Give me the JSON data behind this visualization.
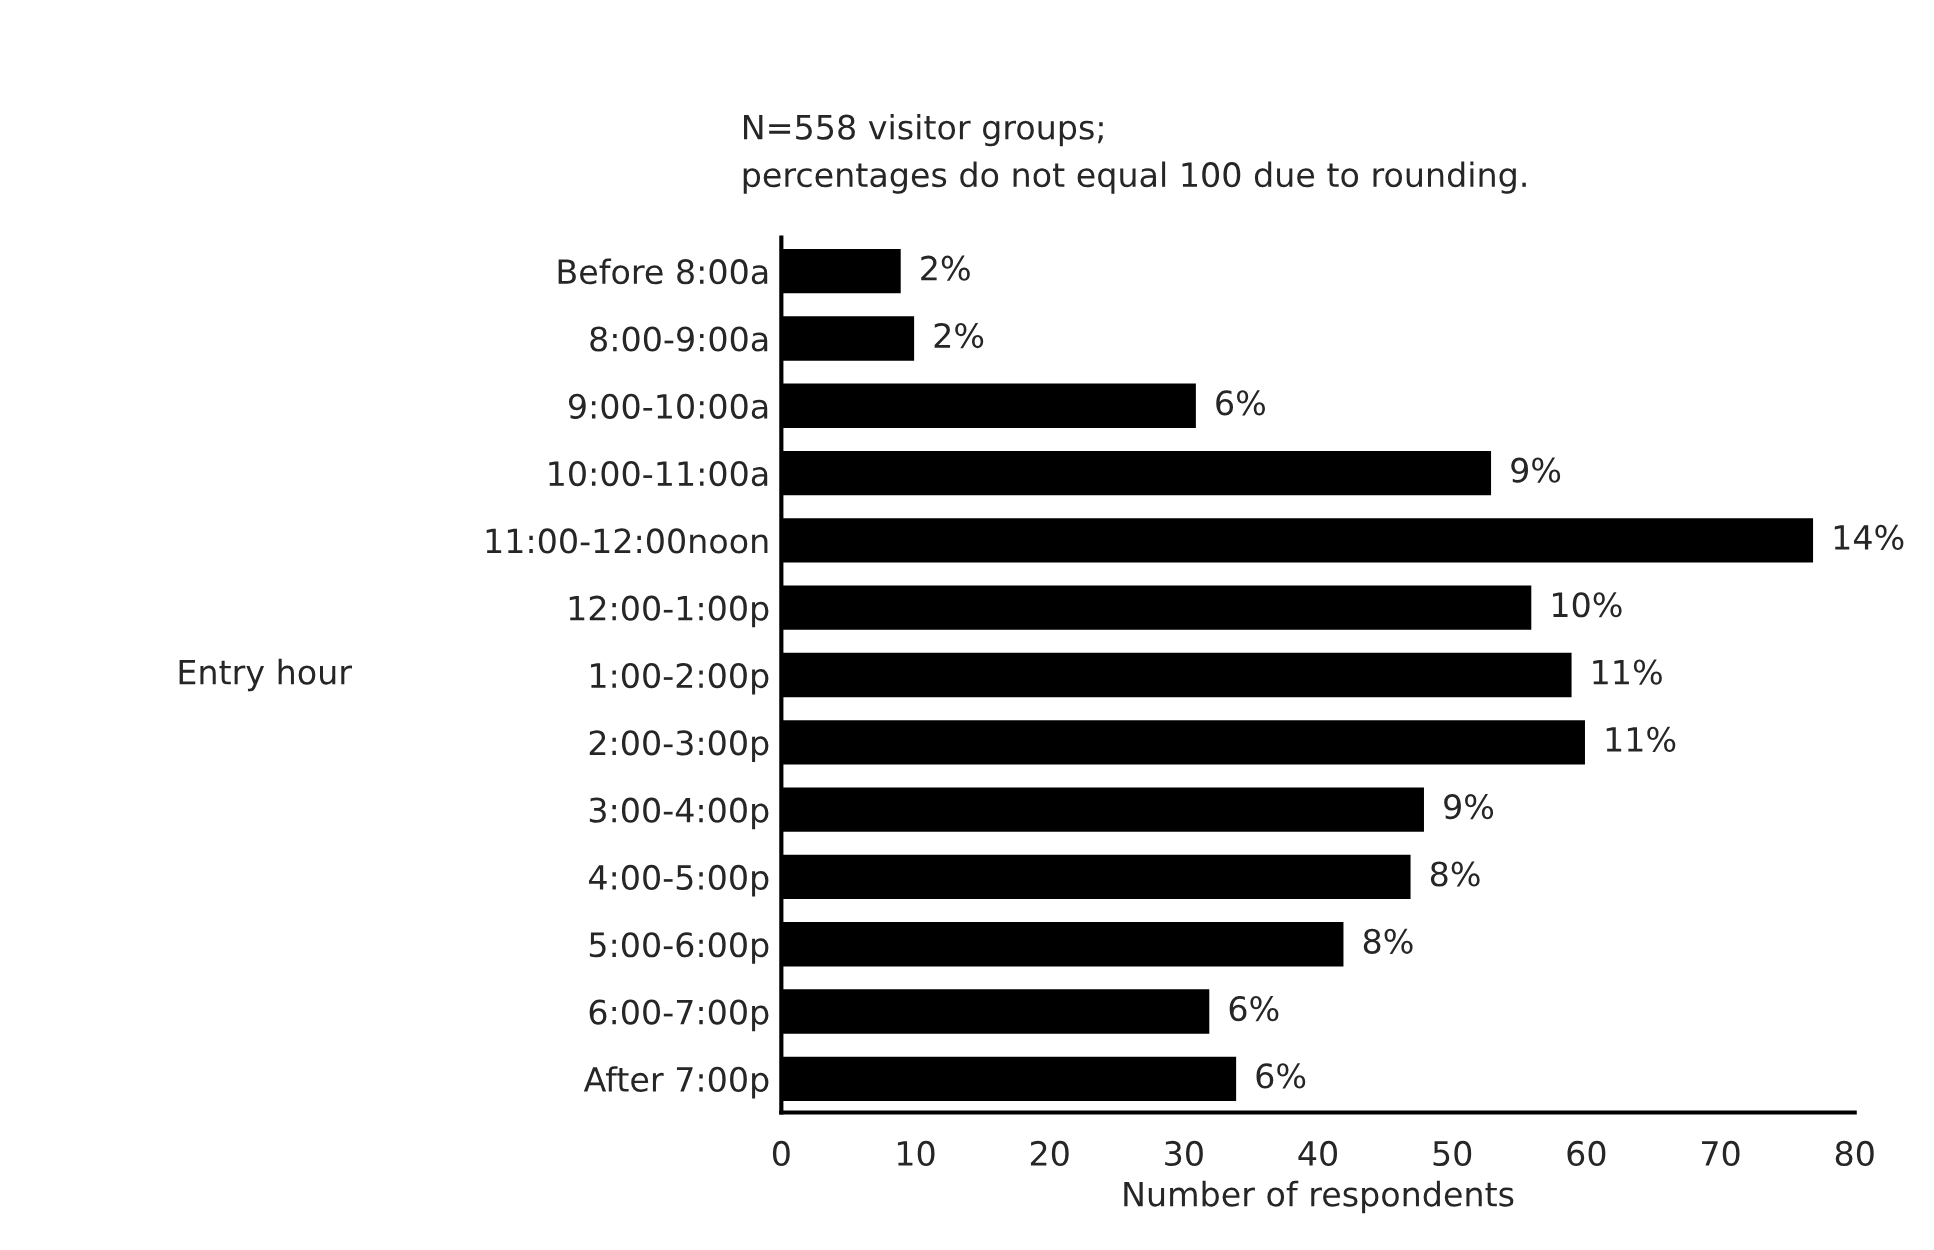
{
  "chart_data": {
    "type": "bar",
    "orientation": "horizontal",
    "title": "N=558 visitor groups;\npercentages do not equal 100 due to rounding.",
    "xlabel": "Number of respondents",
    "ylabel": "Entry hour",
    "categories": [
      "Before 8:00a",
      "8:00-9:00a",
      "9:00-10:00a",
      "10:00-11:00a",
      "11:00-12:00noon",
      "12:00-1:00p",
      "1:00-2:00p",
      "2:00-3:00p",
      "3:00-4:00p",
      "4:00-5:00p",
      "5:00-6:00p",
      "6:00-7:00p",
      "After 7:00p"
    ],
    "values": [
      9,
      10,
      31,
      53,
      77,
      56,
      59,
      60,
      48,
      47,
      42,
      32,
      34
    ],
    "annotations": [
      {
        "text": "2%",
        "x": 9,
        "y": "Before 8:00a"
      },
      {
        "text": "2%",
        "x": 10,
        "y": "8:00-9:00a"
      },
      {
        "text": "6%",
        "x": 31,
        "y": "9:00-10:00a"
      },
      {
        "text": "9%",
        "x": 53,
        "y": "10:00-11:00a"
      },
      {
        "text": "14%",
        "x": 77,
        "y": "11:00-12:00noon"
      },
      {
        "text": "10%",
        "x": 56,
        "y": "12:00-1:00p"
      },
      {
        "text": "11%",
        "x": 59,
        "y": "1:00-2:00p"
      },
      {
        "text": "11%",
        "x": 60,
        "y": "2:00-3:00p"
      },
      {
        "text": "9%",
        "x": 48,
        "y": "3:00-4:00p"
      },
      {
        "text": "8%",
        "x": 47,
        "y": "4:00-5:00p"
      },
      {
        "text": "8%",
        "x": 42,
        "y": "5:00-6:00p"
      },
      {
        "text": "6%",
        "x": 32,
        "y": "6:00-7:00p"
      },
      {
        "text": "6%",
        "x": 34,
        "y": "After 7:00p"
      }
    ],
    "color": "#000000",
    "xlim": [
      0,
      80
    ],
    "xticks": [
      0,
      10,
      20,
      30,
      40,
      50,
      60,
      70,
      80
    ],
    "grid": false,
    "legend": false
  }
}
